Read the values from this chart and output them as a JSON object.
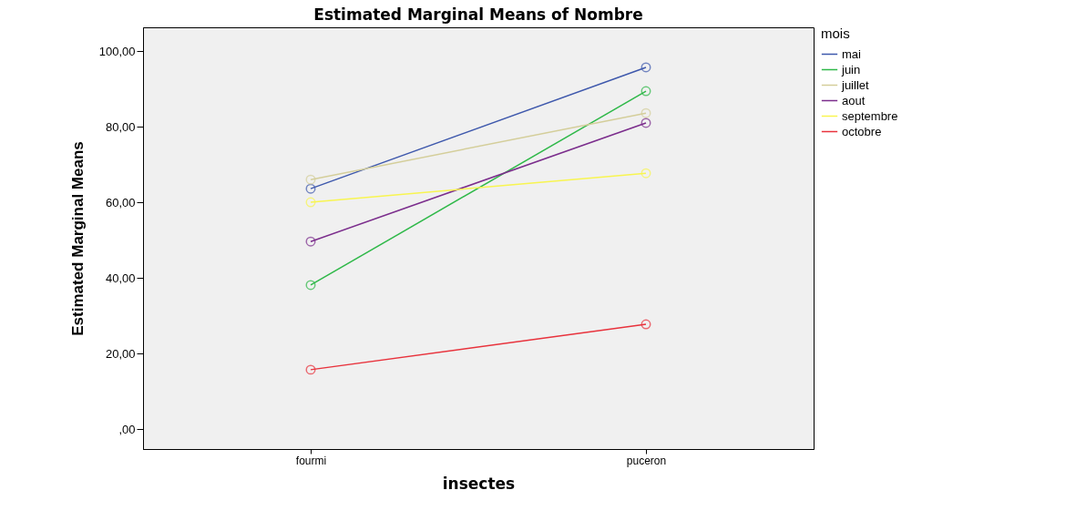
{
  "chart_data": {
    "type": "line",
    "title": "Estimated Marginal Means of Nombre",
    "xlabel": "insectes",
    "ylabel": "Estimated Marginal Means",
    "legend_title": "mois",
    "categories": [
      "fourmi",
      "puceron"
    ],
    "series": [
      {
        "name": "mai",
        "color": "#3e58ac",
        "values": [
          63.6,
          95.7
        ]
      },
      {
        "name": "juin",
        "color": "#2eb848",
        "values": [
          38.1,
          89.4
        ]
      },
      {
        "name": "juillet",
        "color": "#d4ce9a",
        "values": [
          66.0,
          83.6
        ]
      },
      {
        "name": "aout",
        "color": "#7b2d8c",
        "values": [
          49.6,
          81.0
        ]
      },
      {
        "name": "septembre",
        "color": "#f8f550",
        "values": [
          60.0,
          67.7
        ]
      },
      {
        "name": "octobre",
        "color": "#e8323c",
        "values": [
          15.7,
          27.7
        ]
      }
    ],
    "ylim": [
      -5.3,
      106.3
    ],
    "yticks": [
      {
        "value": 0,
        "label": ",00"
      },
      {
        "value": 20,
        "label": "20,00"
      },
      {
        "value": 40,
        "label": "40,00"
      },
      {
        "value": 60,
        "label": "60,00"
      },
      {
        "value": 80,
        "label": "80,00"
      },
      {
        "value": 100,
        "label": "100,00"
      }
    ],
    "marker": "circle",
    "line_style": "solid",
    "grid": false,
    "legend": "top right"
  }
}
